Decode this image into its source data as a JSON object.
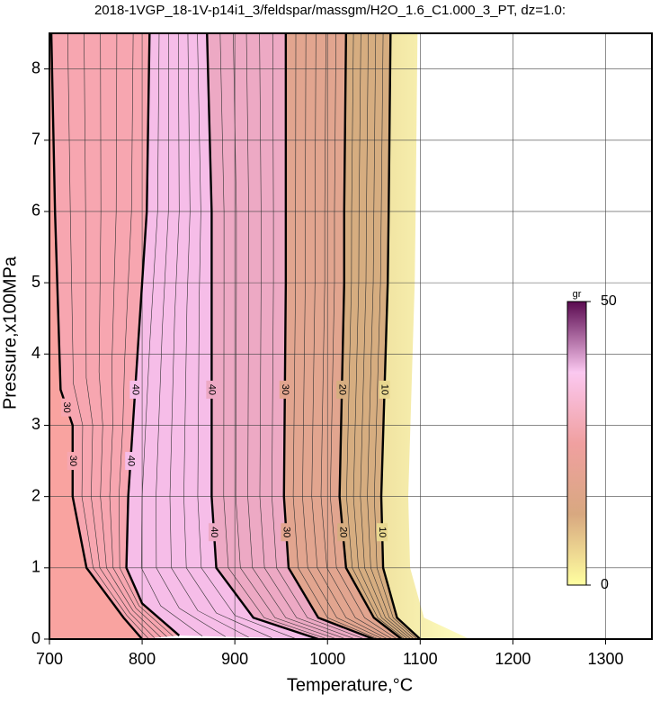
{
  "chart_data": {
    "type": "contour",
    "title": "2018-1VGP_18-1V-p14i1_3/feldspar/massgm/H2O_1.6_C1.000_3_PT, dz=1.0:",
    "xlabel": "Temperature,°C",
    "ylabel": "Pressure,x100MPa",
    "xlim": [
      700,
      1350
    ],
    "ylim": [
      0,
      8.5
    ],
    "xticks": [
      700,
      800,
      900,
      1000,
      1100,
      1200,
      1300
    ],
    "yticks": [
      0,
      1,
      2,
      3,
      4,
      5,
      6,
      7,
      8
    ],
    "grid": true,
    "fill_colors": [
      "#f9a3a0",
      "#f7a6b0",
      "#f6bde8",
      "#eda9c4",
      "#e2a58f",
      "#d6ad80",
      "#e9d890"
    ],
    "contours": [
      {
        "level": 30,
        "x": [
          702,
          706,
          712,
          725,
          725,
          740,
          780,
          800
        ],
        "y": [
          8.5,
          6,
          3.5,
          3,
          2,
          1,
          0.3,
          0
        ]
      },
      {
        "level": 40,
        "x": [
          808,
          805,
          795,
          790,
          785,
          783,
          800,
          840
        ],
        "y": [
          8.5,
          6,
          4,
          3,
          2,
          1,
          0.5,
          0.05
        ]
      },
      {
        "level": 40,
        "x": [
          870,
          875,
          875,
          875,
          880,
          920,
          990
        ],
        "y": [
          8.5,
          6,
          5,
          2,
          1,
          0.3,
          0
        ]
      },
      {
        "level": 30,
        "x": [
          955,
          955,
          955,
          953,
          958,
          990,
          1050
        ],
        "y": [
          8.5,
          6,
          5,
          2,
          1,
          0.3,
          0
        ]
      },
      {
        "level": 20,
        "x": [
          1020,
          1018,
          1018,
          1013,
          1020,
          1050,
          1080
        ],
        "y": [
          8.5,
          6,
          5,
          2,
          1,
          0.3,
          0
        ]
      },
      {
        "level": 10,
        "x": [
          1068,
          1066,
          1065,
          1058,
          1060,
          1075,
          1100
        ],
        "y": [
          8.5,
          6,
          5,
          2,
          1,
          0.3,
          0
        ]
      }
    ],
    "colorbar": {
      "label": "gr",
      "lim": [
        0,
        50
      ],
      "ticks": [
        0,
        50
      ],
      "colors": [
        "#ffffa0",
        "#d8a880",
        "#f0a0a0",
        "#fbc8f0",
        "#5a0a50"
      ]
    }
  }
}
